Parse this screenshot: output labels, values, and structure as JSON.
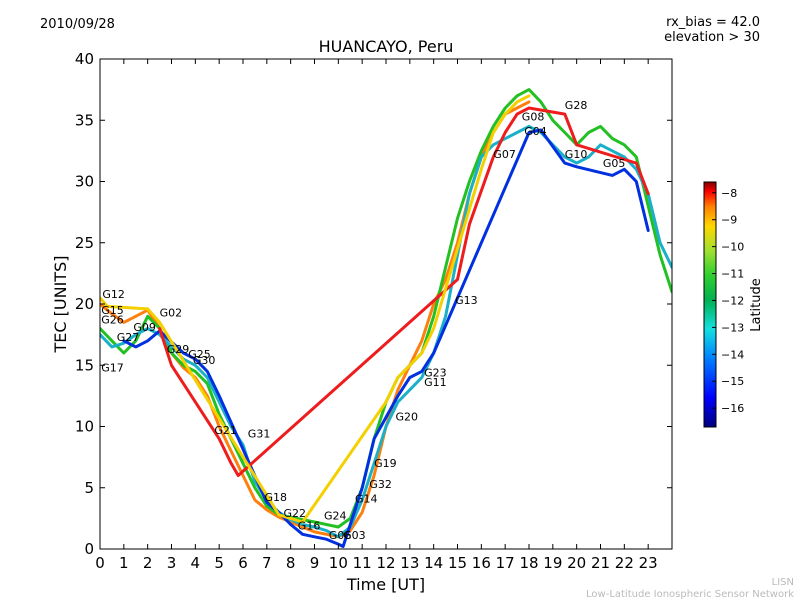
{
  "header": {
    "date": "2010/09/28",
    "rx_bias": "rx_bias = 42.0",
    "elevation": "elevation > 30"
  },
  "footer": {
    "line1": "LISN",
    "line2": "Low-Latitude Ionospheric Sensor Network"
  },
  "colorbar": {
    "label": "Latitude",
    "ticks": [
      "-8",
      "-9",
      "-10",
      "-11",
      "-12",
      "-13",
      "-14",
      "-15",
      "-16"
    ],
    "range": [
      -16.7,
      -7.6
    ],
    "colors": [
      "#00007f",
      "#0000ff",
      "#0080ff",
      "#15e0e0",
      "#00b050",
      "#30d030",
      "#a0e030",
      "#ffd700",
      "#ff8000",
      "#ff0000",
      "#7f0000"
    ]
  },
  "chart_data": {
    "type": "scatter",
    "title": "HUANCAYO, Peru",
    "xlabel": "Time [UT]",
    "ylabel": "TEC [UNITS]",
    "xlim": [
      0,
      24
    ],
    "ylim": [
      0,
      40
    ],
    "xticks": [
      "0",
      "1",
      "2",
      "3",
      "4",
      "5",
      "6",
      "7",
      "8",
      "9",
      "10",
      "11",
      "12",
      "13",
      "14",
      "15",
      "16",
      "17",
      "18",
      "19",
      "20",
      "21",
      "22",
      "23"
    ],
    "yticks": [
      "0",
      "5",
      "10",
      "15",
      "20",
      "25",
      "30",
      "35",
      "40"
    ],
    "series": [
      {
        "name": "s1",
        "color": "#ff7f0e",
        "x": [
          0,
          0.5,
          1,
          1.5,
          2,
          2.5,
          3,
          3.5,
          4,
          4.5,
          5,
          5.5,
          6,
          6.5,
          7,
          7.5,
          8,
          8.5,
          9,
          9.5,
          10,
          10.5,
          11,
          11.5,
          12,
          12.5,
          13,
          13.5,
          14,
          14.5,
          15,
          15.5,
          16,
          16.5,
          17,
          17.5,
          18
        ],
        "y": [
          20,
          19.2,
          18.5,
          19,
          19.5,
          18,
          16,
          14.8,
          14,
          12.5,
          10,
          8,
          6,
          4,
          3.2,
          2.6,
          2.2,
          1.8,
          1.4,
          1.2,
          1,
          1.5,
          3,
          6,
          10,
          13,
          15,
          17,
          20,
          22,
          25,
          29,
          32,
          34,
          35.5,
          36,
          36.5
        ]
      },
      {
        "name": "s2",
        "color": "#22c022",
        "x": [
          0,
          0.5,
          1,
          1.5,
          2,
          2.5,
          3,
          3.5,
          4,
          4.5,
          5,
          5.5,
          6,
          6.5,
          7,
          7.5,
          8,
          8.5,
          9,
          9.5,
          10,
          10.5,
          11,
          11.5,
          12,
          12.5,
          13,
          13.5,
          14,
          14.5,
          15,
          15.5,
          16,
          16.5,
          17,
          17.5,
          18,
          18.5,
          19,
          19.5,
          20,
          20.5,
          21,
          21.5,
          22,
          22.5,
          23,
          23.5,
          24
        ],
        "y": [
          18,
          17,
          16,
          17,
          19,
          18,
          16,
          15,
          14.5,
          13.5,
          11,
          9,
          7,
          5,
          3.5,
          2.8,
          2.6,
          2.4,
          2.2,
          2,
          1.8,
          2.5,
          5,
          9,
          12,
          14,
          15,
          16,
          19,
          23,
          27,
          30,
          32.5,
          34.5,
          36,
          37,
          37.5,
          36.5,
          35,
          34,
          33,
          34,
          34.5,
          33.5,
          33,
          32,
          28,
          24,
          21
        ]
      },
      {
        "name": "s3",
        "color": "#1ab0c8",
        "x": [
          0,
          0.5,
          1,
          1.5,
          2,
          2.5,
          3,
          3.5,
          4,
          4.5,
          5,
          5.5,
          6,
          6.5,
          7,
          7.5,
          8,
          8.5,
          9,
          9.5,
          10,
          10.5,
          11,
          11.5,
          12,
          12.5,
          13,
          13.5,
          14,
          14.5,
          15,
          15.5,
          16,
          16.5,
          17,
          17.5,
          18,
          18.5,
          19,
          19.5,
          20,
          20.5,
          21,
          21.5,
          22,
          22.5,
          23,
          23.5,
          24
        ],
        "y": [
          17.5,
          16.5,
          16.8,
          17.5,
          18,
          17.5,
          16.5,
          15.5,
          15,
          14,
          12,
          10,
          8.5,
          5.5,
          4,
          3,
          2.4,
          2,
          1.8,
          1.5,
          1,
          1.8,
          4,
          7,
          10,
          12,
          13,
          14,
          16,
          19,
          24,
          29,
          32,
          33,
          33.5,
          34,
          34.5,
          34,
          33,
          32,
          31.5,
          32,
          33,
          32.5,
          32,
          31,
          29,
          25,
          23
        ]
      },
      {
        "name": "s4",
        "color": "#0030e0",
        "x": [
          1,
          1.5,
          2,
          2.5,
          3.5,
          4,
          4.5,
          5,
          7,
          7.5,
          8,
          8.5,
          9,
          9.5,
          10,
          10.2,
          11,
          11.5,
          12.5,
          13,
          13.5,
          14,
          18,
          18.5,
          19.5,
          20,
          21.5,
          22,
          22.5,
          23
        ],
        "y": [
          17,
          16.5,
          17,
          17.8,
          16,
          15.5,
          14.5,
          12.5,
          3.8,
          3,
          2,
          1.2,
          1,
          0.8,
          0.4,
          0.2,
          5,
          9,
          12.5,
          14,
          14.5,
          16,
          34,
          34.2,
          31.5,
          31.2,
          30.5,
          31,
          30,
          26
        ]
      },
      {
        "name": "s5",
        "color": "#ee1c1c",
        "x": [
          2.5,
          3,
          3.5,
          5,
          5.5,
          5.8,
          15,
          15.5,
          16.5,
          17,
          17.5,
          18,
          19.5,
          20,
          22.5,
          23
        ],
        "y": [
          18,
          15,
          13.5,
          9,
          7,
          6,
          22,
          26.5,
          32,
          34,
          35.5,
          36,
          35.5,
          33,
          31.5,
          29
        ]
      },
      {
        "name": "s6",
        "color": "#f4d000",
        "x": [
          0,
          0.3,
          2,
          2.5,
          7.5,
          8,
          8.5,
          12,
          12.5,
          13,
          13.5,
          14,
          16,
          16.5,
          17,
          17.5,
          18
        ],
        "y": [
          20.5,
          19.8,
          19.6,
          18.5,
          2.8,
          2.5,
          2.2,
          12,
          14,
          15,
          16,
          18,
          31,
          34,
          35.5,
          36.5,
          37
        ]
      }
    ],
    "labels": [
      {
        "text": "G12",
        "x": 0.1,
        "y": 20.5
      },
      {
        "text": "G15",
        "x": 0.05,
        "y": 19.2
      },
      {
        "text": "G26",
        "x": 0.05,
        "y": 18.4
      },
      {
        "text": "G27",
        "x": 0.7,
        "y": 17
      },
      {
        "text": "G09",
        "x": 1.4,
        "y": 17.8
      },
      {
        "text": "G02",
        "x": 2.5,
        "y": 19
      },
      {
        "text": "G29",
        "x": 2.8,
        "y": 16
      },
      {
        "text": "G25",
        "x": 3.7,
        "y": 15.6
      },
      {
        "text": "G30",
        "x": 3.9,
        "y": 15.1
      },
      {
        "text": "G17",
        "x": 0.05,
        "y": 14.5
      },
      {
        "text": "G21",
        "x": 4.8,
        "y": 9.4
      },
      {
        "text": "G31",
        "x": 6.2,
        "y": 9.1
      },
      {
        "text": "G18",
        "x": 6.9,
        "y": 3.9
      },
      {
        "text": "G22",
        "x": 7.7,
        "y": 2.6
      },
      {
        "text": "G16",
        "x": 8.3,
        "y": 1.6
      },
      {
        "text": "G24",
        "x": 9.4,
        "y": 2.4
      },
      {
        "text": "G06",
        "x": 9.6,
        "y": 0.8
      },
      {
        "text": "G03",
        "x": 10.2,
        "y": 0.8
      },
      {
        "text": "G14",
        "x": 10.7,
        "y": 3.8
      },
      {
        "text": "G32",
        "x": 11.3,
        "y": 5
      },
      {
        "text": "G19",
        "x": 11.5,
        "y": 6.7
      },
      {
        "text": "G20",
        "x": 12.4,
        "y": 10.5
      },
      {
        "text": "G23",
        "x": 13.6,
        "y": 14.1
      },
      {
        "text": "G11",
        "x": 13.6,
        "y": 13.3
      },
      {
        "text": "G13",
        "x": 14.9,
        "y": 20
      },
      {
        "text": "G07",
        "x": 16.5,
        "y": 31.9
      },
      {
        "text": "G08",
        "x": 17.7,
        "y": 35
      },
      {
        "text": "G04",
        "x": 17.8,
        "y": 33.8
      },
      {
        "text": "G28",
        "x": 19.5,
        "y": 35.9
      },
      {
        "text": "G10",
        "x": 19.5,
        "y": 31.9
      },
      {
        "text": "G05",
        "x": 21.1,
        "y": 31.2
      }
    ]
  }
}
